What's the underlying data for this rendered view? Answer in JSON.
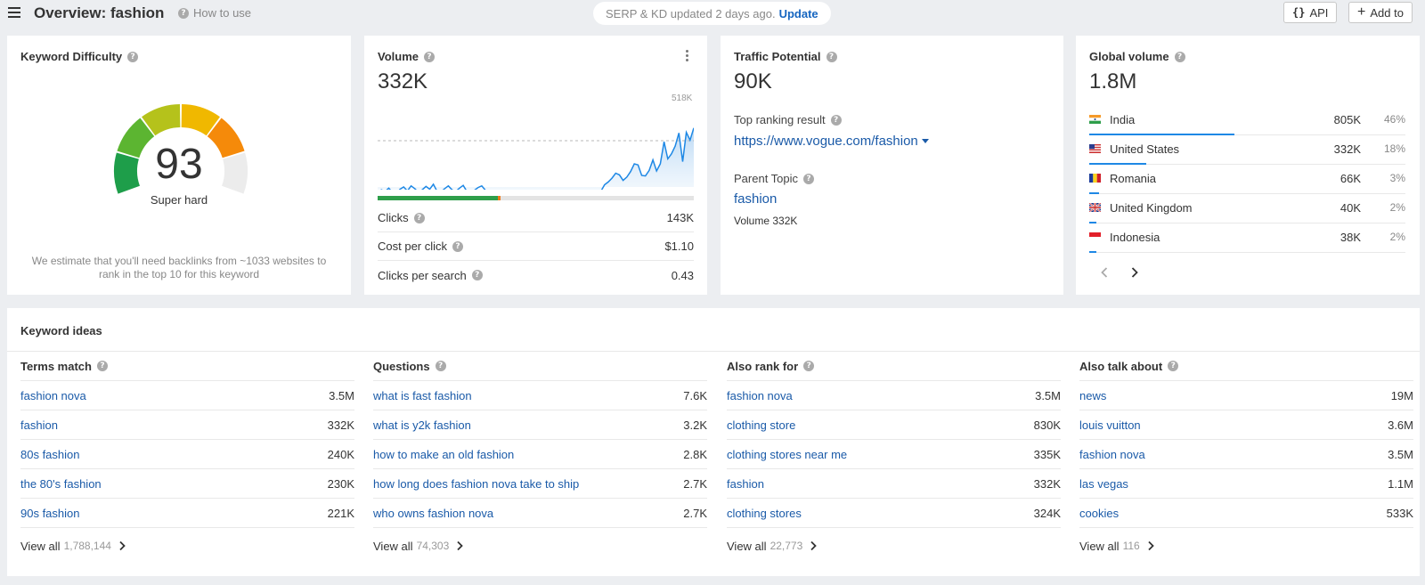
{
  "header": {
    "title": "Overview: fashion",
    "how_to_use": "How to use",
    "update_notice": "SERP & KD updated 2 days ago.",
    "update_link": "Update",
    "api_label": "API",
    "add_to_label": "Add to"
  },
  "kd": {
    "title": "Keyword Difficulty",
    "value": 93,
    "label": "Super hard",
    "note": "We estimate that you'll need backlinks from ~1033 websites to rank in the top 10 for this keyword"
  },
  "volume": {
    "title": "Volume",
    "value": "332K",
    "max_label": "518K",
    "clicks_split": {
      "organic": 0.38,
      "paid": 0.01
    },
    "metrics": [
      {
        "label": "Clicks",
        "value": "143K"
      },
      {
        "label": "Cost per click",
        "value": "$1.10"
      },
      {
        "label": "Clicks per search",
        "value": "0.43"
      }
    ],
    "trend": [
      232,
      226,
      229,
      223,
      231,
      235,
      225,
      221,
      228,
      219,
      224,
      231,
      226,
      220,
      225,
      216,
      229,
      230,
      224,
      219,
      226,
      229,
      223,
      218,
      229,
      233,
      227,
      222,
      219,
      227,
      229,
      238,
      229,
      231,
      245,
      243,
      244,
      251,
      245,
      241,
      245,
      249,
      244,
      243,
      241,
      249,
      239,
      244,
      250,
      245,
      237,
      246,
      239,
      243,
      244,
      247,
      239,
      242,
      237,
      240,
      229,
      217,
      212,
      205,
      196,
      199,
      209,
      203,
      193,
      179,
      181,
      200,
      201,
      191,
      172,
      192,
      179,
      139,
      170,
      161,
      147,
      123,
      175,
      122,
      136,
      114
    ]
  },
  "traffic": {
    "title": "Traffic Potential",
    "value": "90K",
    "top_result_label": "Top ranking result",
    "top_result_url": "https://www.vogue.com/fashion",
    "parent_label": "Parent Topic",
    "parent_topic": "fashion",
    "parent_volume": "Volume 332K"
  },
  "global": {
    "title": "Global volume",
    "value": "1.8M",
    "countries": [
      {
        "name": "India",
        "volume": "805K",
        "pct": "46%",
        "share": 0.46,
        "flag": "flag-in"
      },
      {
        "name": "United States",
        "volume": "332K",
        "pct": "18%",
        "share": 0.18,
        "flag": "flag-us"
      },
      {
        "name": "Romania",
        "volume": "66K",
        "pct": "3%",
        "share": 0.03,
        "flag": "flag-ro"
      },
      {
        "name": "United Kingdom",
        "volume": "40K",
        "pct": "2%",
        "share": 0.02,
        "flag": "flag-gb"
      },
      {
        "name": "Indonesia",
        "volume": "38K",
        "pct": "2%",
        "share": 0.02,
        "flag": "flag-id"
      }
    ]
  },
  "ideas": {
    "title": "Keyword ideas",
    "view_all_label": "View all",
    "columns": [
      {
        "title": "Terms match",
        "rows": [
          {
            "kw": "fashion nova",
            "vol": "3.5M"
          },
          {
            "kw": "fashion",
            "vol": "332K"
          },
          {
            "kw": "80s fashion",
            "vol": "240K"
          },
          {
            "kw": "the 80's fashion",
            "vol": "230K"
          },
          {
            "kw": "90s fashion",
            "vol": "221K"
          }
        ],
        "total": "1,788,144"
      },
      {
        "title": "Questions",
        "rows": [
          {
            "kw": "what is fast fashion",
            "vol": "7.6K"
          },
          {
            "kw": "what is y2k fashion",
            "vol": "3.2K"
          },
          {
            "kw": "how to make an old fashion",
            "vol": "2.8K"
          },
          {
            "kw": "how long does fashion nova take to ship",
            "vol": "2.7K"
          },
          {
            "kw": "who owns fashion nova",
            "vol": "2.7K"
          }
        ],
        "total": "74,303"
      },
      {
        "title": "Also rank for",
        "rows": [
          {
            "kw": "fashion nova",
            "vol": "3.5M"
          },
          {
            "kw": "clothing store",
            "vol": "830K"
          },
          {
            "kw": "clothing stores near me",
            "vol": "335K"
          },
          {
            "kw": "fashion",
            "vol": "332K"
          },
          {
            "kw": "clothing stores",
            "vol": "324K"
          }
        ],
        "total": "22,773"
      },
      {
        "title": "Also talk about",
        "rows": [
          {
            "kw": "news",
            "vol": "19M"
          },
          {
            "kw": "louis vuitton",
            "vol": "3.6M"
          },
          {
            "kw": "fashion nova",
            "vol": "3.5M"
          },
          {
            "kw": "las vegas",
            "vol": "1.1M"
          },
          {
            "kw": "cookies",
            "vol": "533K"
          }
        ],
        "total": "116"
      }
    ]
  },
  "colors": {
    "link": "#1a5aa8",
    "accent_blue": "#1e88e5",
    "gauge": [
      "#1e9e4a",
      "#5cb531",
      "#b5c21b",
      "#f0b800",
      "#f58a0a",
      "#ececec"
    ]
  }
}
